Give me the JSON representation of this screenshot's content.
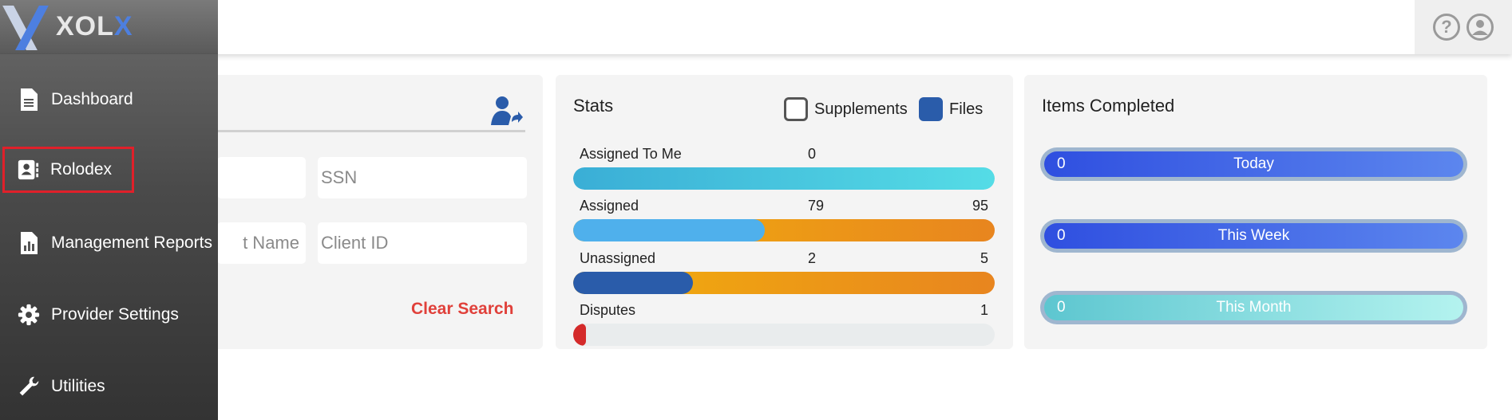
{
  "app": {
    "logo_text_a": "XOL",
    "logo_text_b": "X"
  },
  "header": {
    "help_icon": "question-circle-icon",
    "account_icon": "user-circle-icon"
  },
  "sidebar": {
    "items": [
      {
        "label": "Dashboard",
        "icon": "document-icon"
      },
      {
        "label": "Rolodex",
        "icon": "contact-card-icon"
      },
      {
        "label": "Management Reports",
        "icon": "report-icon"
      },
      {
        "label": "Provider Settings",
        "icon": "gear-icon"
      },
      {
        "label": "Utilities",
        "icon": "wrench-icon"
      }
    ]
  },
  "search": {
    "fields": [
      {
        "placeholder": "SSN"
      },
      {
        "placeholder": "t Name"
      },
      {
        "placeholder": "Client ID"
      }
    ],
    "clear_label": "Clear Search"
  },
  "stats": {
    "title": "Stats",
    "supplements_label": "Supplements",
    "files_label": "Files",
    "rows": [
      {
        "label": "Assigned To Me",
        "value": "0",
        "total": "",
        "fraction": 1.0
      },
      {
        "label": "Assigned",
        "value": "79",
        "total": "95",
        "fraction": 0.455
      },
      {
        "label": "Unassigned",
        "value": "2",
        "total": "5",
        "fraction": 0.285
      },
      {
        "label": "Disputes",
        "value": "",
        "total": "1",
        "fraction": 0.03
      }
    ]
  },
  "items_completed": {
    "title": "Items Completed",
    "rows": [
      {
        "count": "0",
        "label": "Today"
      },
      {
        "count": "0",
        "label": "This Week"
      },
      {
        "count": "0",
        "label": "This Month"
      }
    ]
  },
  "colors": {
    "accent_blue": "#2a5caa",
    "clear_red": "#e0403a",
    "highlight_red": "#e0202a"
  }
}
